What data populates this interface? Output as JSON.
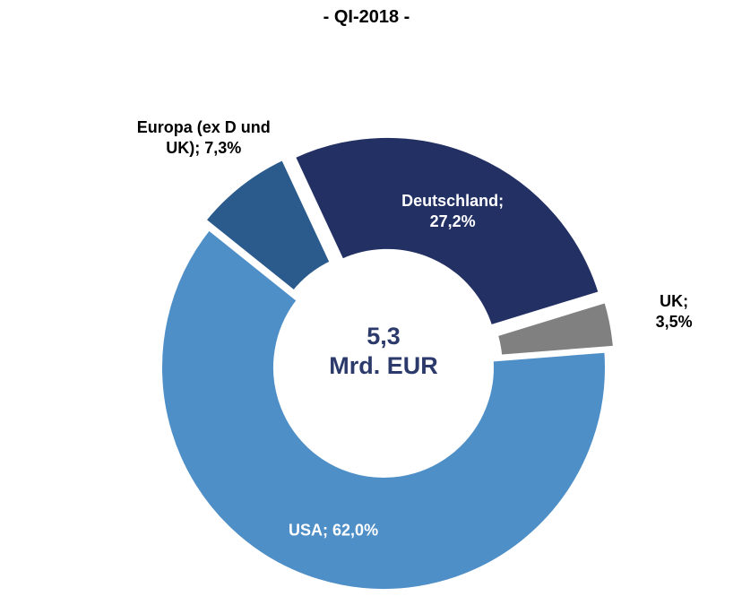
{
  "chart_data": {
    "type": "donut",
    "title": "- QI-2018 -",
    "center_label": "5,3\nMrd. EUR",
    "values": [
      27.2,
      3.5,
      62.0,
      7.3
    ],
    "value_labels": [
      "Deutschland;\n27,2%",
      "UK; 3,5%",
      "USA; 62,0%",
      "Europa (ex D und\nUK); 7,3%"
    ],
    "colors": [
      "#233064",
      "#808080",
      "#4f8fc7",
      "#2a5b8c"
    ]
  }
}
